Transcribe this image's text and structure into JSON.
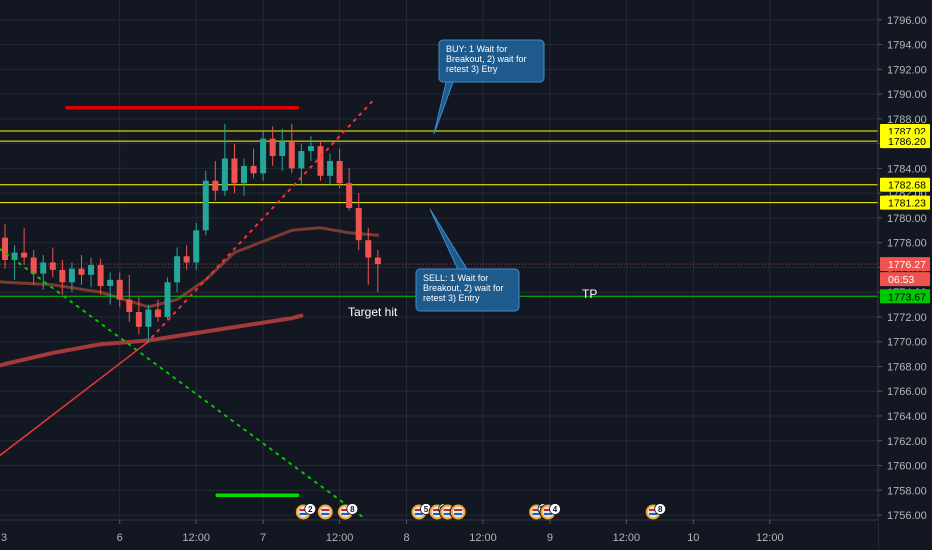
{
  "colors": {
    "background": "#131722",
    "grid": "#242a36",
    "up": "#26a69a",
    "down": "#ef5350",
    "level": "#ffff00",
    "tp": "#00c800",
    "price": "#ef5350",
    "note_fill": "#1e5a8c",
    "note_stroke": "#3a8fd0",
    "resistance": "#e00000",
    "support_bar": "#00e000"
  },
  "chart_data": {
    "type": "candlestick",
    "ylim": [
      1755.6,
      1797.6
    ],
    "y_ticks": [
      1756,
      1758,
      1760,
      1762,
      1764,
      1766,
      1768,
      1770,
      1772,
      1774,
      1776,
      1778,
      1780,
      1782,
      1784,
      1786,
      1788,
      1790,
      1792,
      1794,
      1796
    ],
    "x_ticks": [
      {
        "label": "3",
        "bar": -4
      },
      {
        "label": "6",
        "bar": 12
      },
      {
        "label": "12:00",
        "bar": 20
      },
      {
        "label": "7",
        "bar": 27
      },
      {
        "label": "12:00",
        "bar": 35
      },
      {
        "label": "8",
        "bar": 42
      },
      {
        "label": "12:00",
        "bar": 50
      },
      {
        "label": "9",
        "bar": 57
      },
      {
        "label": "12:00",
        "bar": 65
      },
      {
        "label": "10",
        "bar": 72
      },
      {
        "label": "12:00",
        "bar": 80
      }
    ],
    "candles": [
      [
        1778.4,
        1779.5,
        1775.9,
        1776.6
      ],
      [
        1776.6,
        1777.8,
        1775.0,
        1777.2
      ],
      [
        1777.2,
        1779.2,
        1776.2,
        1776.8
      ],
      [
        1776.8,
        1777.4,
        1774.6,
        1775.5
      ],
      [
        1775.5,
        1777.0,
        1774.2,
        1776.4
      ],
      [
        1776.4,
        1777.6,
        1775.2,
        1775.8
      ],
      [
        1775.8,
        1776.6,
        1773.8,
        1774.8
      ],
      [
        1774.8,
        1776.4,
        1774.0,
        1775.9
      ],
      [
        1775.9,
        1777.0,
        1774.6,
        1775.4
      ],
      [
        1775.4,
        1776.8,
        1774.4,
        1776.2
      ],
      [
        1776.2,
        1776.7,
        1773.8,
        1774.5
      ],
      [
        1774.5,
        1775.6,
        1773.0,
        1775.0
      ],
      [
        1775.0,
        1775.6,
        1772.8,
        1773.4
      ],
      [
        1773.4,
        1775.4,
        1771.6,
        1772.4
      ],
      [
        1772.4,
        1773.6,
        1770.6,
        1771.2
      ],
      [
        1771.2,
        1773.0,
        1769.9,
        1772.6
      ],
      [
        1772.6,
        1773.4,
        1771.6,
        1772.0
      ],
      [
        1772.0,
        1775.2,
        1771.8,
        1774.8
      ],
      [
        1774.8,
        1777.6,
        1774.0,
        1776.9
      ],
      [
        1776.9,
        1777.8,
        1775.8,
        1776.4
      ],
      [
        1776.4,
        1779.6,
        1775.8,
        1779.0
      ],
      [
        1779.0,
        1783.8,
        1778.6,
        1783.0
      ],
      [
        1783.0,
        1784.6,
        1781.4,
        1782.2
      ],
      [
        1782.2,
        1787.6,
        1781.8,
        1784.8
      ],
      [
        1784.8,
        1786.0,
        1782.0,
        1782.8
      ],
      [
        1782.8,
        1784.8,
        1781.8,
        1784.2
      ],
      [
        1784.2,
        1785.6,
        1783.2,
        1783.6
      ],
      [
        1783.6,
        1787.0,
        1783.0,
        1786.4
      ],
      [
        1786.4,
        1787.4,
        1784.2,
        1785.0
      ],
      [
        1785.0,
        1787.2,
        1783.8,
        1786.2
      ],
      [
        1786.2,
        1787.6,
        1783.6,
        1784.0
      ],
      [
        1784.0,
        1786.0,
        1782.6,
        1785.4
      ],
      [
        1785.4,
        1786.6,
        1784.6,
        1785.8
      ],
      [
        1785.8,
        1786.2,
        1783.0,
        1783.4
      ],
      [
        1783.4,
        1785.2,
        1782.6,
        1784.6
      ],
      [
        1784.6,
        1785.6,
        1782.4,
        1782.8
      ],
      [
        1782.8,
        1784.0,
        1780.6,
        1780.8
      ],
      [
        1780.8,
        1782.0,
        1777.4,
        1778.2
      ],
      [
        1778.2,
        1779.2,
        1774.6,
        1776.8
      ],
      [
        1776.8,
        1777.4,
        1774.0,
        1776.27
      ]
    ],
    "annotations": [
      {
        "type": "text",
        "text": "Target hit"
      },
      {
        "type": "text",
        "text": "TP"
      },
      {
        "type": "callout",
        "lines": [
          "BUY: 1 Wait for",
          "Breakout, 2) wait for",
          "retest 3) Etry"
        ]
      },
      {
        "type": "callout",
        "lines": [
          "SELL: 1 Wait for",
          "Breakout, 2) wait for",
          "retest 3) Entry"
        ]
      }
    ],
    "price_levels": [
      {
        "label": "1787.02",
        "value": 1787.02,
        "kind": "level"
      },
      {
        "label": "1786.20",
        "value": 1786.2,
        "kind": "level"
      },
      {
        "label": "1782.68",
        "value": 1782.68,
        "kind": "level"
      },
      {
        "label": "1781.23",
        "value": 1781.23,
        "kind": "level"
      },
      {
        "label": "1776.27",
        "value": 1776.27,
        "kind": "price"
      },
      {
        "label": "06:53",
        "value": 1775.0,
        "kind": "timer"
      },
      {
        "label": "1773.67",
        "value": 1773.67,
        "kind": "tp"
      }
    ],
    "hidden_tag_label": "1782.2",
    "lines": [
      {
        "name": "",
        "color": "#e00000",
        "width": 3.5,
        "dash": "",
        "points": [
          [
            6.5,
            1788.9
          ],
          [
            30.6,
            1788.9
          ]
        ]
      },
      {
        "name": "",
        "color": "#00e000",
        "width": 3.5,
        "dash": "",
        "points": [
          [
            22.2,
            1757.6
          ],
          [
            30.6,
            1757.6
          ]
        ]
      },
      {
        "name": "",
        "color": "#ff3030",
        "width": 2,
        "dash": "2 6",
        "points": [
          [
            14.8,
            1769.9
          ],
          [
            38.4,
            1789.4
          ]
        ]
      },
      {
        "name": "",
        "color": "#00c800",
        "width": 2,
        "dash": "2 6",
        "points": [
          [
            -4.6,
            1779.8
          ],
          [
            37.5,
            1755.8
          ]
        ]
      },
      {
        "name": "",
        "color": "#00c800",
        "width": 2,
        "dash": "2 6",
        "points": [
          [
            -4.6,
            1770.0
          ],
          [
            -2.6,
            1768.8
          ]
        ]
      },
      {
        "name": "",
        "color": "#e53935",
        "width": 1.5,
        "dash": "",
        "points": [
          [
            -4.6,
            1758.4
          ],
          [
            14.8,
            1769.9
          ]
        ]
      },
      {
        "name": "",
        "color": "#a43a3a",
        "width": 4,
        "dash": "",
        "points": [
          [
            -4.6,
            1767.2
          ],
          [
            0,
            1768.2
          ],
          [
            5,
            1769.1
          ],
          [
            10,
            1769.8
          ],
          [
            15,
            1770.1
          ],
          [
            20,
            1770.7
          ],
          [
            25,
            1771.3
          ],
          [
            30,
            1771.9
          ],
          [
            31,
            1772.1
          ]
        ]
      },
      {
        "name": "",
        "color": "#7d3a30",
        "width": 3,
        "dash": "",
        "points": [
          [
            -4.6,
            1775.2
          ],
          [
            0,
            1774.8
          ],
          [
            5,
            1774.6
          ],
          [
            10,
            1774.0
          ],
          [
            15,
            1772.8
          ],
          [
            18,
            1773.4
          ],
          [
            21,
            1775.0
          ],
          [
            24,
            1777.2
          ],
          [
            27,
            1778.1
          ],
          [
            30,
            1779.0
          ],
          [
            33,
            1779.2
          ],
          [
            36,
            1778.8
          ],
          [
            39,
            1778.6
          ]
        ]
      }
    ],
    "events": [
      {
        "bar": 31.2,
        "label": "2"
      },
      {
        "bar": 33.5,
        "label": ""
      },
      {
        "bar": 35.6,
        "label": "8"
      },
      {
        "bar": 43.3,
        "label": "5"
      },
      {
        "bar": 45.2,
        "label": "14"
      },
      {
        "bar": 46.3,
        "label": ""
      },
      {
        "bar": 47.4,
        "label": ""
      },
      {
        "bar": 55.6,
        "label": "27"
      },
      {
        "bar": 56.8,
        "label": "4"
      },
      {
        "bar": 67.8,
        "label": "8"
      }
    ]
  }
}
